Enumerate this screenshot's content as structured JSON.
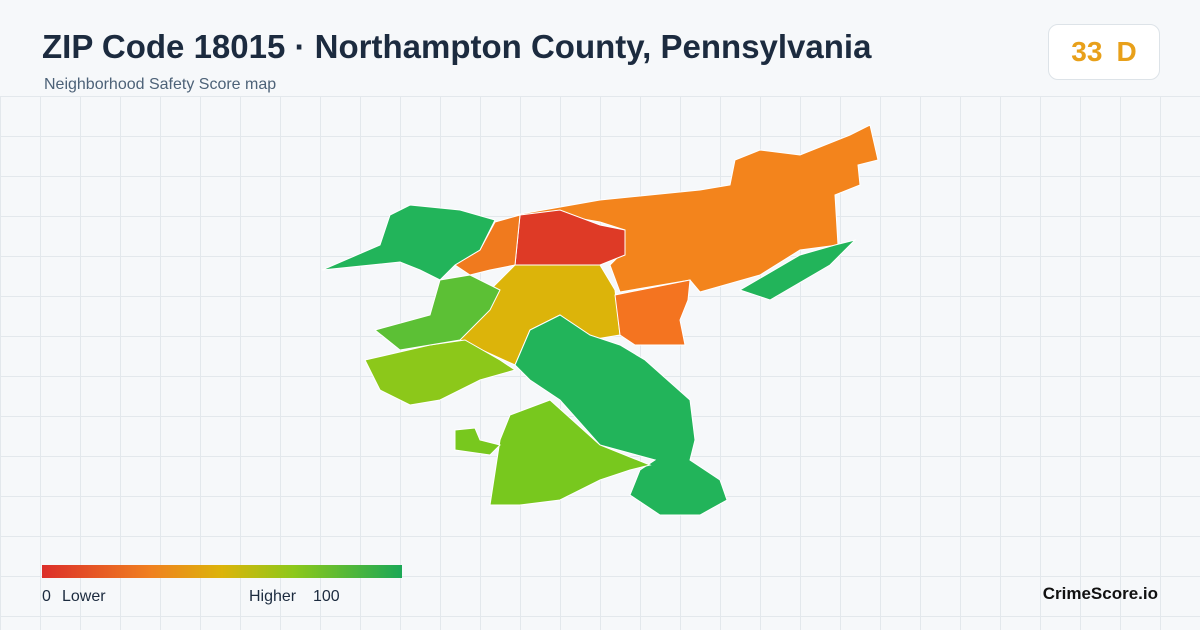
{
  "header": {
    "title": "ZIP Code 18015 · Northampton County, Pennsylvania",
    "subtitle": "Neighborhood Safety Score map"
  },
  "score": {
    "value": 33,
    "grade": "D"
  },
  "legend": {
    "min": 0,
    "min_label": "Lower",
    "max_label": "Higher",
    "max": 100
  },
  "brand": "CrimeScore.io"
}
